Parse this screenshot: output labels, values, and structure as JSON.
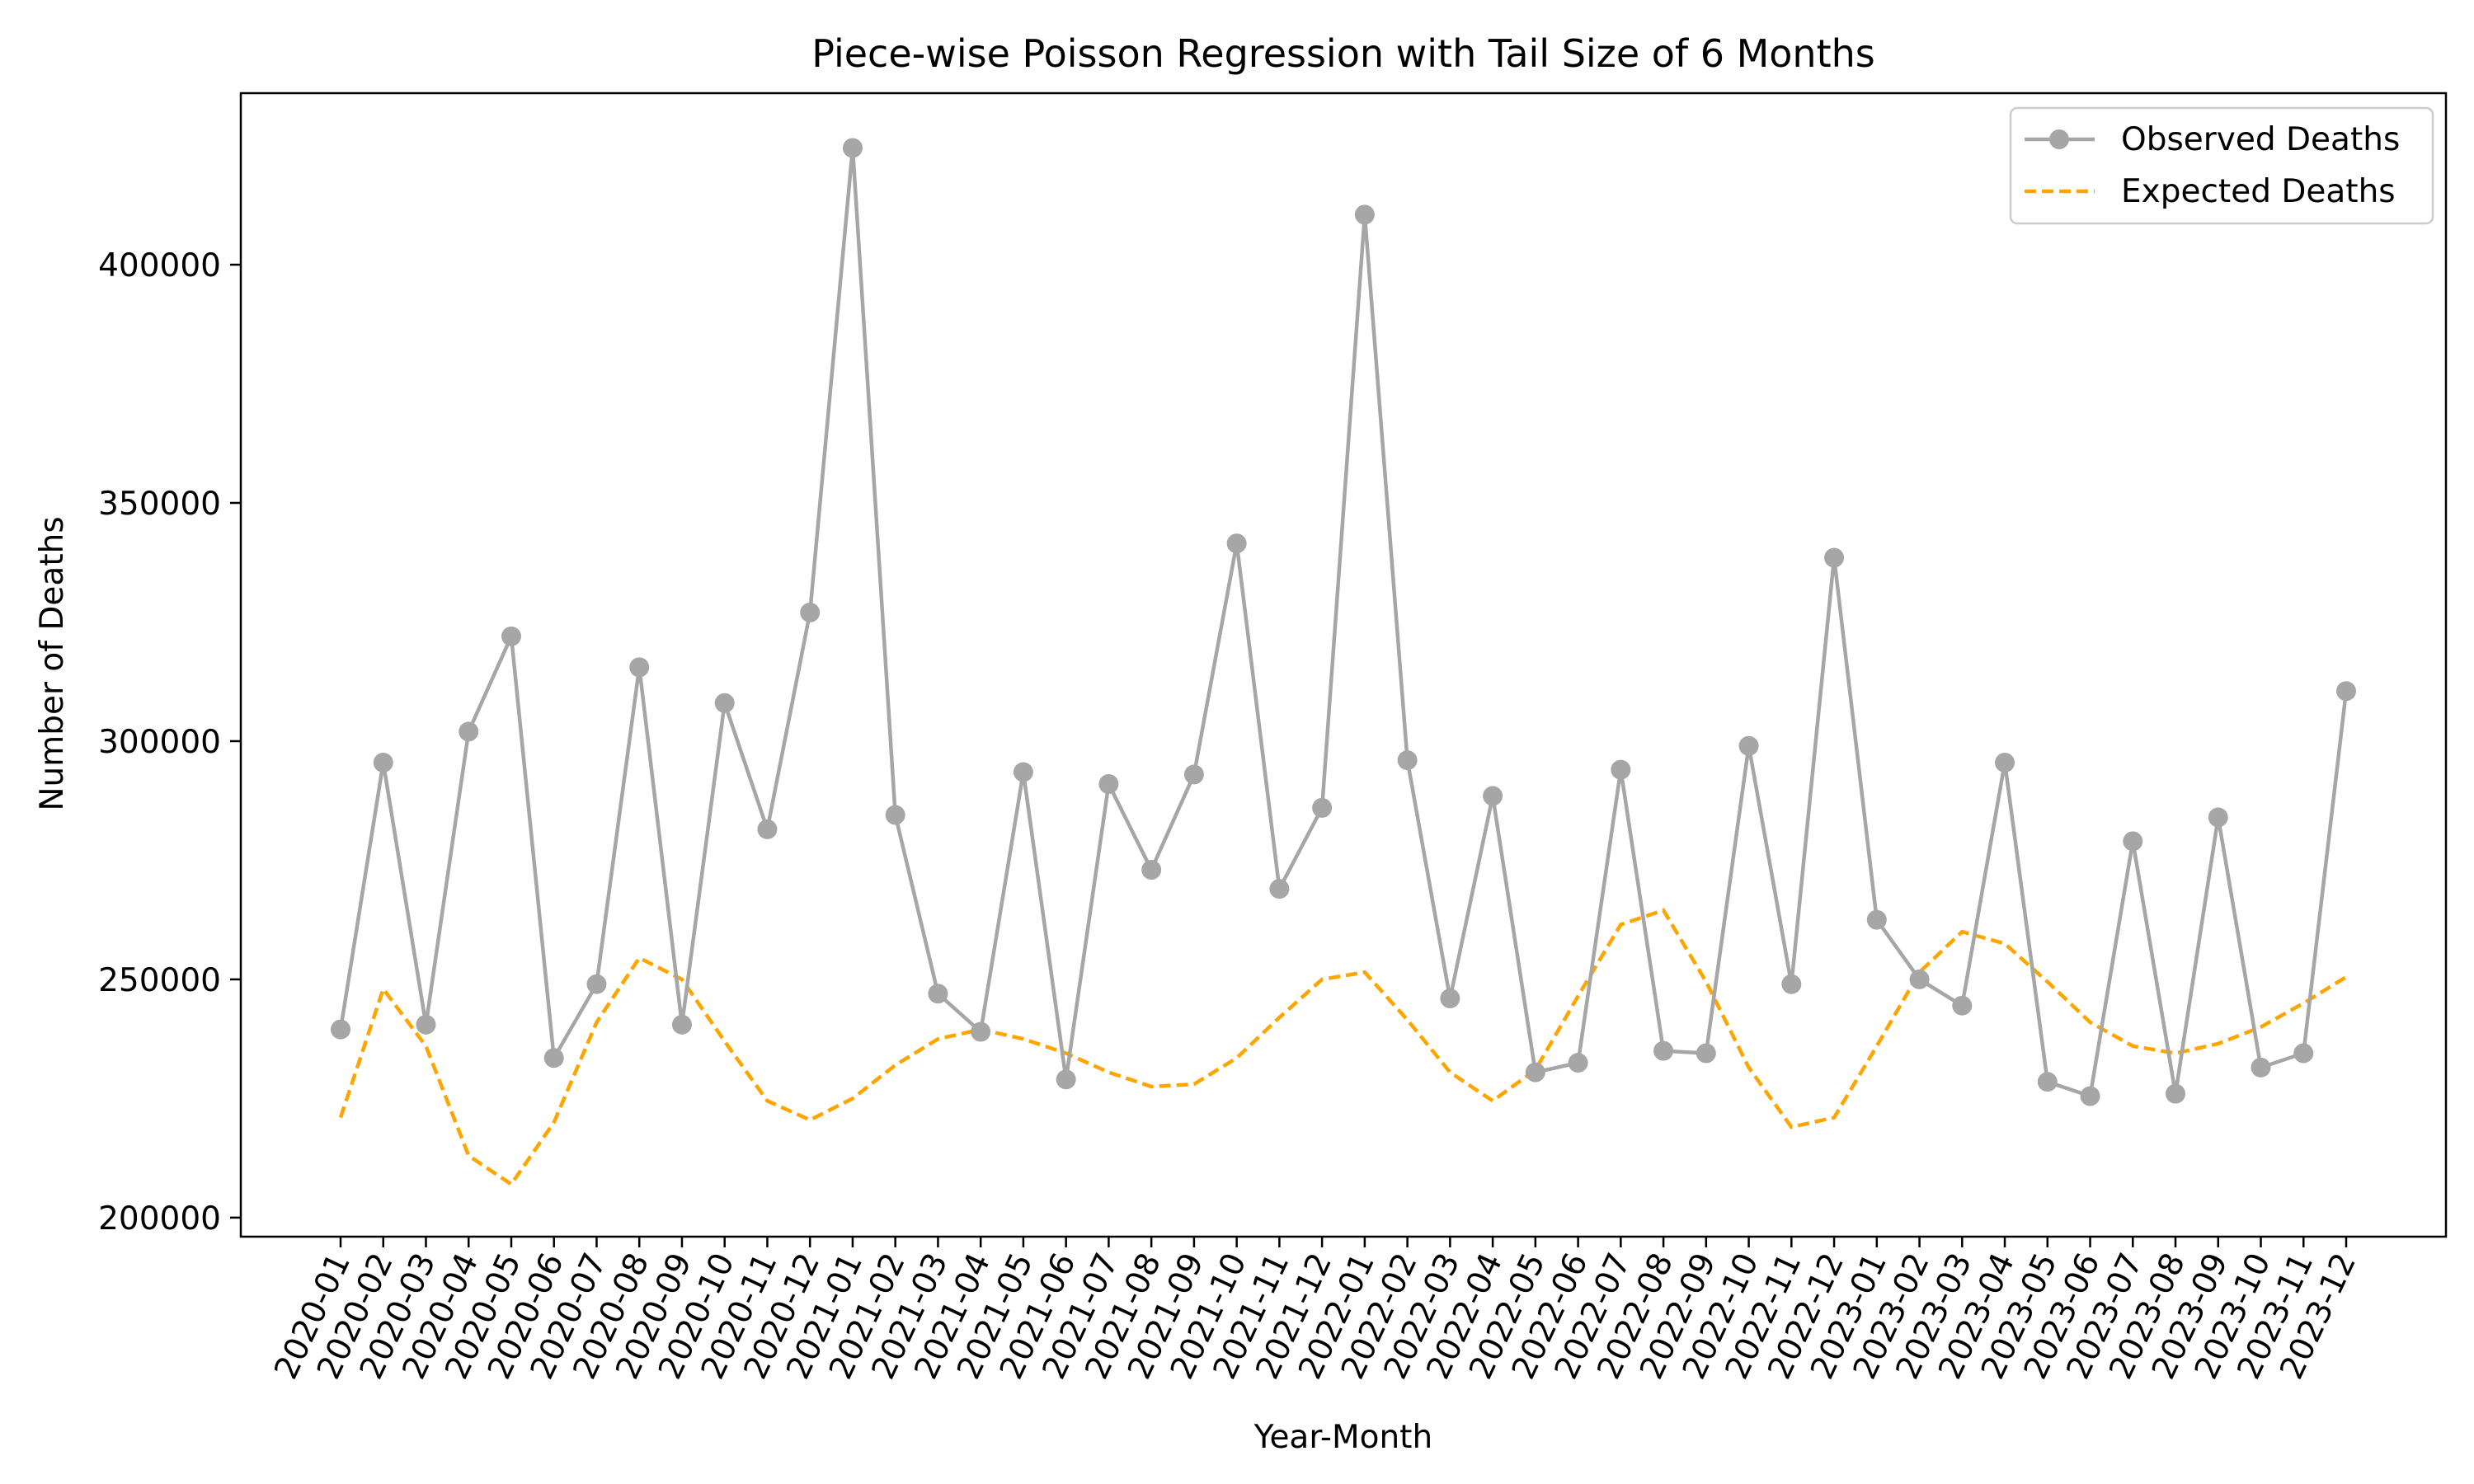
{
  "chart_data": {
    "type": "line",
    "title": "Piece-wise Poisson Regression with Tail Size of 6 Months",
    "xlabel": "Year-Month",
    "ylabel": "Number of Deaths",
    "categories": [
      "2020-01",
      "2020-02",
      "2020-03",
      "2020-04",
      "2020-05",
      "2020-06",
      "2020-07",
      "2020-08",
      "2020-09",
      "2020-10",
      "2020-11",
      "2020-12",
      "2021-01",
      "2021-02",
      "2021-03",
      "2021-04",
      "2021-05",
      "2021-06",
      "2021-07",
      "2021-08",
      "2021-09",
      "2021-10",
      "2021-11",
      "2021-12",
      "2022-01",
      "2022-02",
      "2022-03",
      "2022-04",
      "2022-05",
      "2022-06",
      "2022-07",
      "2022-08",
      "2022-09",
      "2022-10",
      "2022-11",
      "2022-12",
      "2023-01",
      "2023-02",
      "2023-03",
      "2023-04",
      "2023-05",
      "2023-06",
      "2023-07",
      "2023-08",
      "2023-09",
      "2023-10",
      "2023-11",
      "2023-12"
    ],
    "ylim": [
      196000,
      436000
    ],
    "yticks": [
      200000,
      250000,
      300000,
      350000,
      400000
    ],
    "grid": false,
    "legend_position": "top-right",
    "series": [
      {
        "name": "Observed Deaths",
        "style": "solid-with-markers",
        "color": "#a6a6a6",
        "values": [
          239500,
          295500,
          240500,
          302000,
          322000,
          233500,
          249000,
          315500,
          240500,
          308000,
          281500,
          327000,
          424500,
          284500,
          247000,
          239000,
          293500,
          229000,
          291000,
          273000,
          293000,
          341500,
          269000,
          286000,
          410500,
          296000,
          246000,
          288500,
          230500,
          232500,
          294000,
          235000,
          234500,
          299000,
          249000,
          338500,
          262500,
          250000,
          244500,
          295500,
          228500,
          225500,
          279000,
          226000,
          284000,
          231500,
          234500,
          310500
        ]
      },
      {
        "name": "Expected Deaths",
        "style": "dashed",
        "color": "#ffa500",
        "values": [
          221000,
          248000,
          236000,
          213000,
          207000,
          220000,
          241000,
          254500,
          250000,
          237000,
          224500,
          220500,
          225000,
          232000,
          237500,
          239500,
          237500,
          234500,
          230500,
          227500,
          228000,
          233500,
          242000,
          250000,
          251500,
          241500,
          230500,
          224500,
          231000,
          246500,
          261500,
          264500,
          249500,
          231500,
          219000,
          221000,
          236000,
          251500,
          260000,
          257500,
          249500,
          241000,
          236000,
          234500,
          236500,
          240000,
          245000,
          250500
        ]
      }
    ]
  }
}
